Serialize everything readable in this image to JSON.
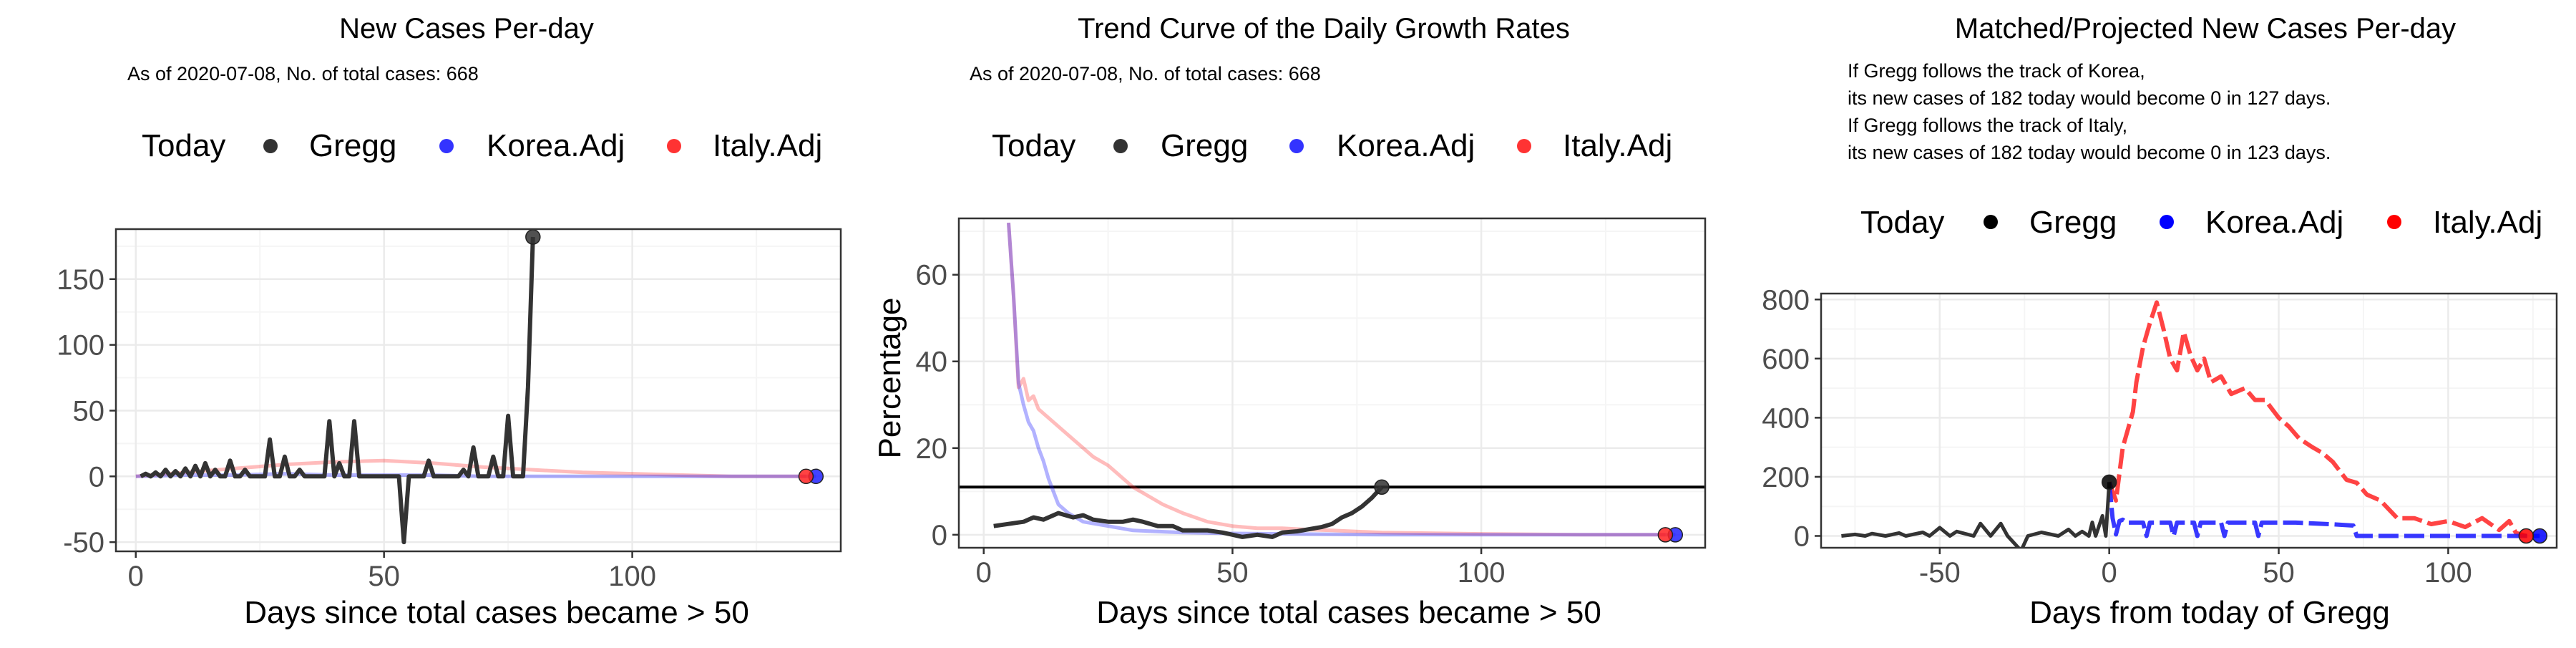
{
  "panels": [
    {
      "title": "New Cases Per-day",
      "subtitle": [
        "As of 2020-07-08, No. of total cases: 668"
      ],
      "legend": {
        "title": "Today",
        "entries": [
          "Gregg",
          "Korea.Adj",
          "Italy.Adj"
        ]
      },
      "xlabel": "Days since total cases became > 50",
      "ylabel": ""
    },
    {
      "title": "Trend Curve of the Daily Growth Rates",
      "subtitle": [
        "As of 2020-07-08, No. of total cases: 668"
      ],
      "legend": {
        "title": "Today",
        "entries": [
          "Gregg",
          "Korea.Adj",
          "Italy.Adj"
        ]
      },
      "xlabel": "Days since total cases became > 50",
      "ylabel": "Percentage"
    },
    {
      "title": "Matched/Projected New Cases Per-day",
      "subtitle": [
        "If Gregg follows the track of Korea,",
        "its new cases of 182 today would become 0 in 127 days.",
        "If Gregg follows the track of Italy,",
        "its new cases of 182 today would become 0 in 123 days."
      ],
      "legend": {
        "title": "Today",
        "entries": [
          "Gregg",
          "Korea.Adj",
          "Italy.Adj"
        ]
      },
      "xlabel": "Days from today of Gregg",
      "ylabel": ""
    }
  ],
  "colors": {
    "gregg": "#333333",
    "korea": "#2222ff",
    "italy": "#ff2222",
    "grid_major": "#ebebeb",
    "grid_minor": "#f5f5f5",
    "frame": "#333333"
  },
  "chart_data": [
    {
      "type": "line",
      "title": "New Cases Per-day",
      "xlabel": "Days since total cases became > 50",
      "ylabel": "",
      "xlim": [
        -4,
        142
      ],
      "ylim": [
        -57,
        188
      ],
      "xticks": [
        0,
        50,
        100
      ],
      "yticks": [
        -50,
        0,
        50,
        100,
        150
      ],
      "grid": true,
      "legend_position": "top",
      "series": [
        {
          "name": "Gregg",
          "x": [
            1,
            2,
            3,
            4,
            5,
            6,
            7,
            8,
            9,
            10,
            11,
            12,
            13,
            14,
            15,
            16,
            17,
            18,
            19,
            20,
            21,
            22,
            23,
            24,
            25,
            26,
            27,
            28,
            29,
            30,
            31,
            32,
            33,
            34,
            35,
            36,
            37,
            38,
            39,
            40,
            41,
            42,
            43,
            44,
            45,
            46,
            47,
            48,
            49,
            50,
            51,
            52,
            53,
            54,
            55,
            56,
            57,
            58,
            59,
            60,
            61,
            62,
            63,
            64,
            65,
            66,
            67,
            68,
            69,
            70,
            71,
            72,
            73,
            74,
            75,
            76,
            77,
            78,
            79,
            80
          ],
          "y": [
            0,
            2,
            0,
            3,
            0,
            5,
            0,
            4,
            0,
            6,
            0,
            8,
            0,
            10,
            0,
            5,
            0,
            0,
            12,
            0,
            0,
            5,
            0,
            0,
            0,
            0,
            28,
            0,
            0,
            15,
            0,
            0,
            5,
            0,
            0,
            0,
            0,
            0,
            42,
            0,
            10,
            0,
            0,
            42,
            0,
            0,
            0,
            0,
            0,
            0,
            0,
            0,
            0,
            -50,
            0,
            0,
            0,
            0,
            12,
            0,
            0,
            0,
            0,
            0,
            0,
            5,
            0,
            22,
            0,
            0,
            0,
            15,
            0,
            0,
            46,
            0,
            0,
            0,
            68,
            182
          ]
        },
        {
          "name": "Korea.Adj",
          "x": [
            0,
            10,
            20,
            30,
            40,
            50,
            60,
            70,
            80,
            90,
            100,
            110,
            120,
            130,
            137
          ],
          "y": [
            0,
            1,
            1,
            2,
            1,
            1,
            1,
            0,
            0,
            0,
            0,
            0,
            0,
            0,
            0
          ]
        },
        {
          "name": "Italy.Adj",
          "x": [
            0,
            10,
            20,
            30,
            40,
            50,
            60,
            70,
            80,
            90,
            100,
            110,
            120,
            130,
            135
          ],
          "y": [
            0,
            3,
            6,
            9,
            11,
            12,
            10,
            7,
            5,
            3,
            2,
            1,
            0,
            0,
            0
          ]
        }
      ],
      "today_points": [
        {
          "name": "Gregg",
          "x": 80,
          "y": 182
        },
        {
          "name": "Korea.Adj",
          "x": 137,
          "y": 0
        },
        {
          "name": "Italy.Adj",
          "x": 135,
          "y": 0
        }
      ]
    },
    {
      "type": "line",
      "title": "Trend Curve of the Daily Growth Rates",
      "xlabel": "Days since total cases became > 50",
      "ylabel": "Percentage",
      "xlim": [
        -5,
        145
      ],
      "ylim": [
        -3,
        73
      ],
      "xticks": [
        0,
        50,
        100
      ],
      "yticks": [
        0,
        20,
        40,
        60
      ],
      "grid": true,
      "legend_position": "top",
      "hline": 11,
      "series": [
        {
          "name": "Gregg",
          "x": [
            2,
            5,
            8,
            10,
            12,
            15,
            18,
            20,
            22,
            25,
            28,
            30,
            32,
            35,
            38,
            40,
            45,
            48,
            50,
            52,
            55,
            58,
            60,
            63,
            65,
            68,
            70,
            72,
            74,
            76,
            78,
            80
          ],
          "y": [
            2,
            2.5,
            3,
            4,
            3.5,
            5,
            4,
            4.5,
            3.5,
            3,
            3,
            3.5,
            3,
            2,
            2,
            1,
            1,
            0.5,
            0,
            -0.5,
            0,
            -0.5,
            0.5,
            0.8,
            1.2,
            1.8,
            2.5,
            4,
            5,
            6.5,
            8.5,
            11
          ]
        },
        {
          "name": "Korea.Adj",
          "x": [
            5,
            6,
            7,
            8,
            9,
            10,
            11,
            12,
            13,
            14,
            15,
            17,
            20,
            25,
            30,
            40,
            50,
            60,
            80,
            100,
            120,
            139
          ],
          "y": [
            72,
            55,
            35,
            30,
            26,
            24,
            20,
            17,
            13,
            10,
            7,
            5,
            3,
            2,
            1,
            0.5,
            0.3,
            0.2,
            0,
            0,
            0,
            0
          ]
        },
        {
          "name": "Italy.Adj",
          "x": [
            5,
            6,
            7,
            8,
            9,
            10,
            11,
            12,
            14,
            16,
            18,
            20,
            22,
            25,
            28,
            30,
            33,
            36,
            40,
            45,
            50,
            55,
            60,
            65,
            70,
            80,
            100,
            120,
            137
          ],
          "y": [
            72,
            55,
            34,
            36,
            31,
            32,
            29,
            28,
            26,
            24,
            22,
            20,
            18,
            16,
            13,
            11,
            9,
            7,
            5,
            3,
            2,
            1.5,
            1.5,
            1.2,
            1,
            0.5,
            0.2,
            0,
            0
          ]
        }
      ],
      "today_points": [
        {
          "name": "Gregg",
          "x": 80,
          "y": 11
        },
        {
          "name": "Korea.Adj",
          "x": 139,
          "y": 0
        },
        {
          "name": "Italy.Adj",
          "x": 137,
          "y": 0
        }
      ]
    },
    {
      "type": "line",
      "title": "Matched/Projected New Cases Per-day",
      "xlabel": "Days from today of Gregg",
      "ylabel": "",
      "xlim": [
        -85,
        132
      ],
      "ylim": [
        -40,
        820
      ],
      "xticks": [
        -50,
        0,
        50,
        100
      ],
      "yticks": [
        0,
        200,
        400,
        600,
        800
      ],
      "grid": true,
      "legend_position": "top",
      "series": [
        {
          "name": "Gregg",
          "x": [
            -79,
            -75,
            -72,
            -70,
            -66,
            -62,
            -60,
            -55,
            -53,
            -50,
            -47,
            -45,
            -40,
            -38,
            -35,
            -32,
            -30,
            -26,
            -24,
            -20,
            -15,
            -12,
            -10,
            -8,
            -6,
            -5,
            -4,
            -2,
            -1,
            0
          ],
          "y": [
            0,
            5,
            0,
            8,
            0,
            10,
            0,
            12,
            0,
            28,
            0,
            15,
            0,
            42,
            0,
            42,
            0,
            -50,
            0,
            12,
            0,
            22,
            0,
            15,
            0,
            46,
            0,
            68,
            0,
            182
          ]
        },
        {
          "name": "Korea.Adj",
          "x": [
            0,
            1,
            2,
            3,
            4,
            5,
            10,
            11,
            12,
            18,
            19,
            20,
            25,
            26,
            27,
            33,
            34,
            35,
            43,
            44,
            45,
            55,
            65,
            72,
            73,
            74,
            80,
            100,
            120,
            127
          ],
          "y": [
            182,
            60,
            5,
            50,
            55,
            45,
            45,
            0,
            45,
            45,
            0,
            45,
            45,
            0,
            45,
            45,
            0,
            45,
            45,
            0,
            45,
            45,
            40,
            35,
            0,
            0,
            0,
            0,
            0,
            0
          ]
        },
        {
          "name": "Italy.Adj",
          "x": [
            0,
            2,
            4,
            5,
            7,
            8,
            10,
            12,
            14,
            16,
            18,
            20,
            22,
            24,
            26,
            28,
            30,
            33,
            36,
            40,
            43,
            46,
            50,
            53,
            56,
            60,
            63,
            66,
            70,
            73,
            76,
            80,
            85,
            90,
            95,
            100,
            105,
            110,
            115,
            118,
            120,
            123
          ],
          "y": [
            182,
            120,
            300,
            340,
            420,
            520,
            640,
            720,
            790,
            700,
            600,
            560,
            690,
            610,
            560,
            600,
            520,
            540,
            480,
            500,
            460,
            460,
            400,
            370,
            330,
            300,
            280,
            250,
            190,
            180,
            140,
            120,
            60,
            60,
            40,
            50,
            30,
            60,
            20,
            50,
            10,
            0
          ]
        }
      ],
      "today_points": [
        {
          "name": "Gregg",
          "x": 0,
          "y": 182
        },
        {
          "name": "Korea.Adj",
          "x": 127,
          "y": 0
        },
        {
          "name": "Italy.Adj",
          "x": 123,
          "y": 0
        }
      ]
    }
  ]
}
